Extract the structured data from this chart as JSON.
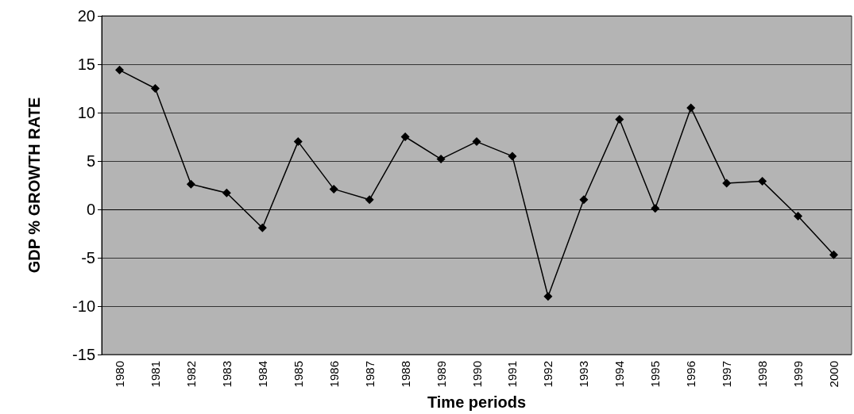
{
  "chart_data": {
    "type": "line",
    "xlabel": "Time periods",
    "ylabel": "GDP % GROWTH RATE",
    "categories": [
      "1980",
      "1981",
      "1982",
      "1983",
      "1984",
      "1985",
      "1986",
      "1987",
      "1988",
      "1989",
      "1990",
      "1991",
      "1992",
      "1993",
      "1994",
      "1995",
      "1996",
      "1997",
      "1998",
      "1999",
      "2000"
    ],
    "series": [
      {
        "color": "#000000",
        "values": [
          14.4,
          12.5,
          2.6,
          1.7,
          -1.9,
          7.0,
          2.1,
          1.0,
          7.5,
          5.2,
          7.0,
          5.5,
          -9.0,
          1.0,
          9.3,
          0.1,
          10.5,
          2.7,
          2.9,
          -0.7,
          -4.7
        ]
      }
    ],
    "ylim": [
      -15,
      20
    ],
    "yticks": [
      -15,
      -10,
      -5,
      0,
      5,
      10,
      15,
      20
    ],
    "grid": "y",
    "marker": "diamond",
    "line_style": "solid"
  }
}
